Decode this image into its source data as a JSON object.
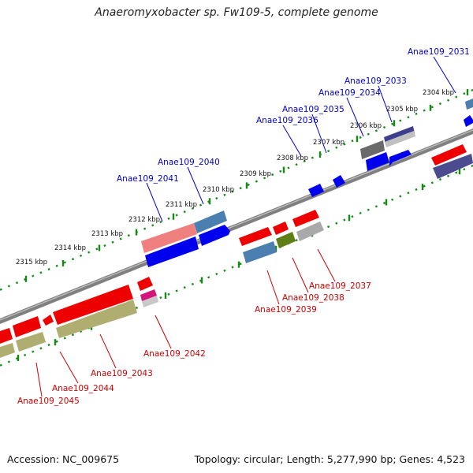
{
  "title": "Anaeromyxobacter sp. Fw109-5, complete genome",
  "footer": {
    "accession": "Accession: NC_009675",
    "summary": "Topology: circular; Length: 5,277,990 bp; Genes: 4,523"
  },
  "kbp_labels": [
    "2304 kbp",
    "2305 kbp",
    "2306 kbp",
    "2307 kbp",
    "2308 kbp",
    "2309 kbp",
    "2310 kbp",
    "2311 kbp",
    "2312 kbp",
    "2313 kbp",
    "2314 kbp",
    "2315 kbp"
  ],
  "genes_top": [
    "Anae109_2031",
    "Anae109_2033",
    "Anae109_2034",
    "Anae109_2035",
    "Anae109_2036",
    "Anae109_2040",
    "Anae109_2041"
  ],
  "genes_bottom": [
    "Anae109_2037",
    "Anae109_2038",
    "Anae109_2039",
    "Anae109_2042",
    "Anae109_2043",
    "Anae109_2044",
    "Anae109_2045"
  ],
  "colors": {
    "top_label": "#0000cc",
    "bottom_label": "#cc0000",
    "tick": "#138a13",
    "backbone": "#7a7a7a",
    "red": "#ee0000",
    "blue": "#0000ee",
    "khaki": "#b0ad70",
    "steel": "#4a7fb0",
    "olive": "#5f7f16",
    "gray": "#a9a9a9",
    "darkgray": "#6a6a6a",
    "navy": "#1c1c9a",
    "slate": "#4b4b8f",
    "pink": "#f08080",
    "magenta": "#d4147a"
  }
}
